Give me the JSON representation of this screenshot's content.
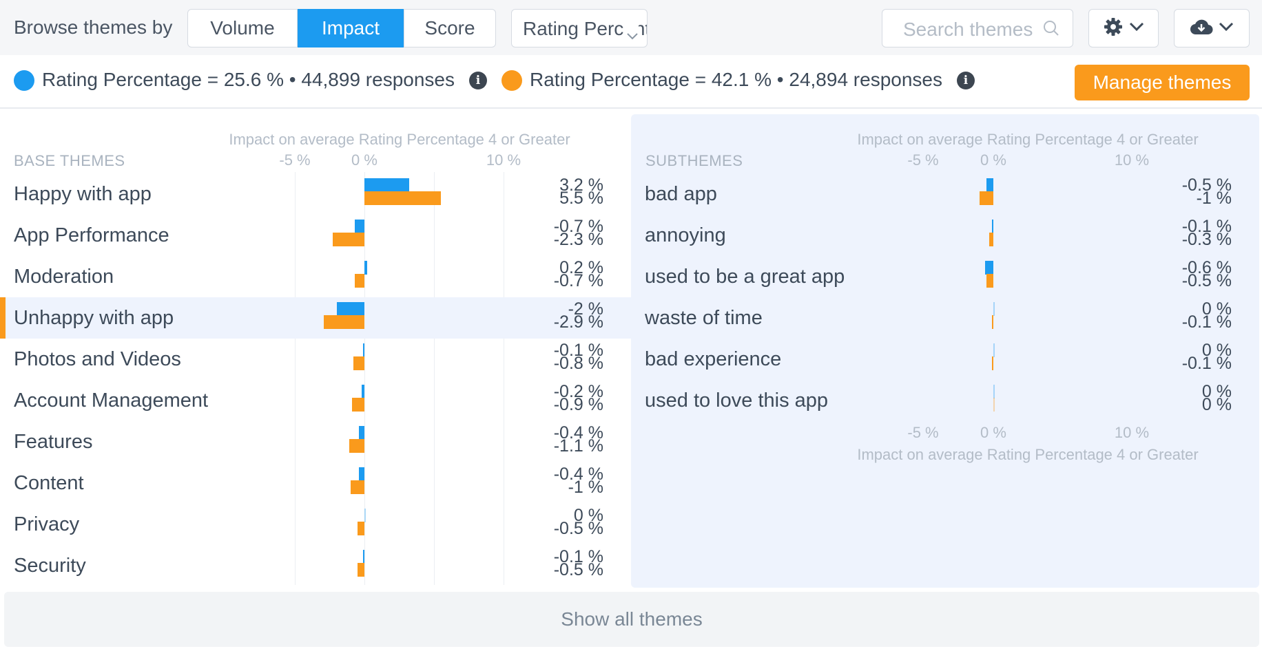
{
  "toolbar": {
    "browse_label": "Browse themes by",
    "modes": [
      "Volume",
      "Impact",
      "Score"
    ],
    "active_mode": "Impact",
    "metric_select": "Rating Percentage",
    "search_placeholder": "Search themes"
  },
  "legend": {
    "series": [
      {
        "text": "Rating Percentage = 25.6 % • 44,899 responses",
        "color": "#1c9bf0"
      },
      {
        "text": "Rating Percentage = 42.1 % • 24,894 responses",
        "color": "#fa9a1c"
      }
    ],
    "info_glyph": "i",
    "manage_button": "Manage themes"
  },
  "base_panel": {
    "section_title": "BASE THEMES",
    "axis_title": "Impact on average Rating Percentage 4 or Greater",
    "ticks": [
      "-5 %",
      "0 %",
      "10 %"
    ],
    "selected_row": "Unhappy with app",
    "rows": [
      {
        "label": "Happy with app",
        "a_text": "3.2 %",
        "b_text": "5.5 %"
      },
      {
        "label": "App Performance",
        "a_text": "-0.7 %",
        "b_text": "-2.3 %"
      },
      {
        "label": "Moderation",
        "a_text": "0.2 %",
        "b_text": "-0.7 %"
      },
      {
        "label": "Unhappy with app",
        "a_text": "-2 %",
        "b_text": "-2.9 %"
      },
      {
        "label": "Photos and Videos",
        "a_text": "-0.1 %",
        "b_text": "-0.8 %"
      },
      {
        "label": "Account Management",
        "a_text": "-0.2 %",
        "b_text": "-0.9 %"
      },
      {
        "label": "Features",
        "a_text": "-0.4 %",
        "b_text": "-1.1 %"
      },
      {
        "label": "Content",
        "a_text": "-0.4 %",
        "b_text": "-1 %"
      },
      {
        "label": "Privacy",
        "a_text": "0 %",
        "b_text": "-0.5 %"
      },
      {
        "label": "Security",
        "a_text": "-0.1 %",
        "b_text": "-0.5 %"
      }
    ]
  },
  "sub_panel": {
    "section_title": "SUBTHEMES",
    "axis_title": "Impact on average Rating Percentage 4 or Greater",
    "ticks": [
      "-5 %",
      "0 %",
      "10 %"
    ],
    "rows": [
      {
        "label": "bad app",
        "a_text": "-0.5 %",
        "b_text": "-1 %"
      },
      {
        "label": "annoying",
        "a_text": "-0.1 %",
        "b_text": "-0.3 %"
      },
      {
        "label": "used to be a great app",
        "a_text": "-0.6 %",
        "b_text": "-0.5 %"
      },
      {
        "label": "waste of time",
        "a_text": "0 %",
        "b_text": "-0.1 %"
      },
      {
        "label": "bad experience",
        "a_text": "0 %",
        "b_text": "-0.1 %"
      },
      {
        "label": "used to love this app",
        "a_text": "0 %",
        "b_text": "0 %"
      }
    ]
  },
  "chart_data": [
    {
      "type": "bar",
      "orientation": "horizontal",
      "section": "BASE THEMES",
      "xlabel": "Impact on average Rating Percentage 4 or Greater",
      "x_ticks": [
        -5,
        0,
        10
      ],
      "xlim": [
        -5,
        10
      ],
      "categories": [
        "Happy with app",
        "App Performance",
        "Moderation",
        "Unhappy with app",
        "Photos and Videos",
        "Account Management",
        "Features",
        "Content",
        "Privacy",
        "Security"
      ],
      "series": [
        {
          "name": "Rating Percentage = 25.6 % • 44,899 responses",
          "color": "#1c9bf0",
          "values": [
            3.2,
            -0.7,
            0.2,
            -2,
            -0.1,
            -0.2,
            -0.4,
            -0.4,
            0,
            -0.1
          ]
        },
        {
          "name": "Rating Percentage = 42.1 % • 24,894 responses",
          "color": "#fa9a1c",
          "values": [
            5.5,
            -2.3,
            -0.7,
            -2.9,
            -0.8,
            -0.9,
            -1.1,
            -1,
            -0.5,
            -0.5
          ]
        }
      ]
    },
    {
      "type": "bar",
      "orientation": "horizontal",
      "section": "SUBTHEMES",
      "xlabel": "Impact on average Rating Percentage 4 or Greater",
      "x_ticks": [
        -5,
        0,
        10
      ],
      "xlim": [
        -5,
        10
      ],
      "categories": [
        "bad app",
        "annoying",
        "used to be a great app",
        "waste of time",
        "bad experience",
        "used to love this app"
      ],
      "series": [
        {
          "name": "Rating Percentage = 25.6 % • 44,899 responses",
          "color": "#1c9bf0",
          "values": [
            -0.5,
            -0.1,
            -0.6,
            0,
            0,
            0
          ]
        },
        {
          "name": "Rating Percentage = 42.1 % • 24,894 responses",
          "color": "#fa9a1c",
          "values": [
            -1,
            -0.3,
            -0.5,
            -0.1,
            -0.1,
            0
          ]
        }
      ]
    }
  ],
  "show_all_label": "Show all themes"
}
